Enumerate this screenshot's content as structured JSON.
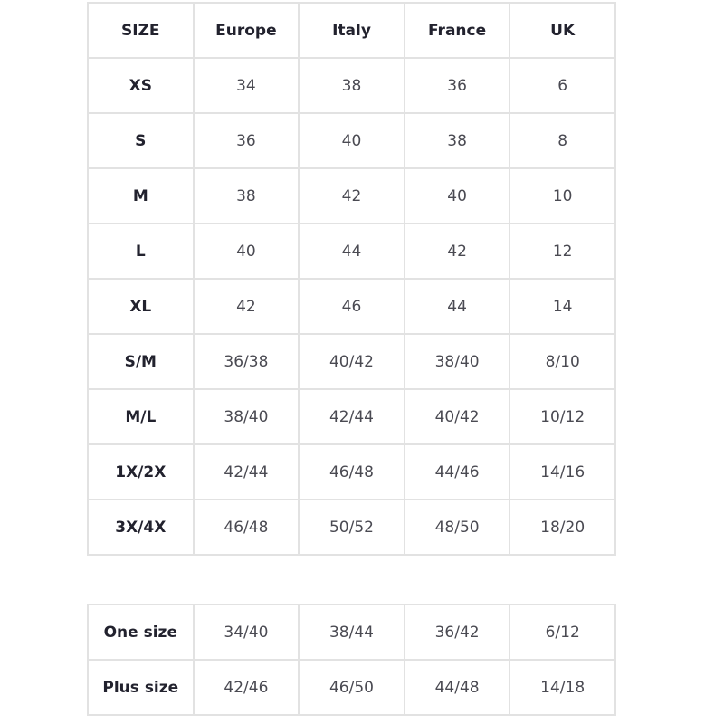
{
  "size_table": {
    "headers": [
      "SIZE",
      "Europe",
      "Italy",
      "France",
      "UK"
    ],
    "rows": [
      [
        "XS",
        "34",
        "38",
        "36",
        "6"
      ],
      [
        "S",
        "36",
        "40",
        "38",
        "8"
      ],
      [
        "M",
        "38",
        "42",
        "40",
        "10"
      ],
      [
        "L",
        "40",
        "44",
        "42",
        "12"
      ],
      [
        "XL",
        "42",
        "46",
        "44",
        "14"
      ],
      [
        "S/M",
        "36/38",
        "40/42",
        "38/40",
        "8/10"
      ],
      [
        "M/L",
        "38/40",
        "42/44",
        "40/42",
        "10/12"
      ],
      [
        "1X/2X",
        "42/44",
        "46/48",
        "44/46",
        "14/16"
      ],
      [
        "3X/4X",
        "46/48",
        "50/52",
        "48/50",
        "18/20"
      ]
    ]
  },
  "special_table": {
    "rows": [
      [
        "One size",
        "34/40",
        "38/44",
        "36/42",
        "6/12"
      ],
      [
        "Plus size",
        "42/46",
        "46/50",
        "44/48",
        "14/18"
      ]
    ]
  }
}
